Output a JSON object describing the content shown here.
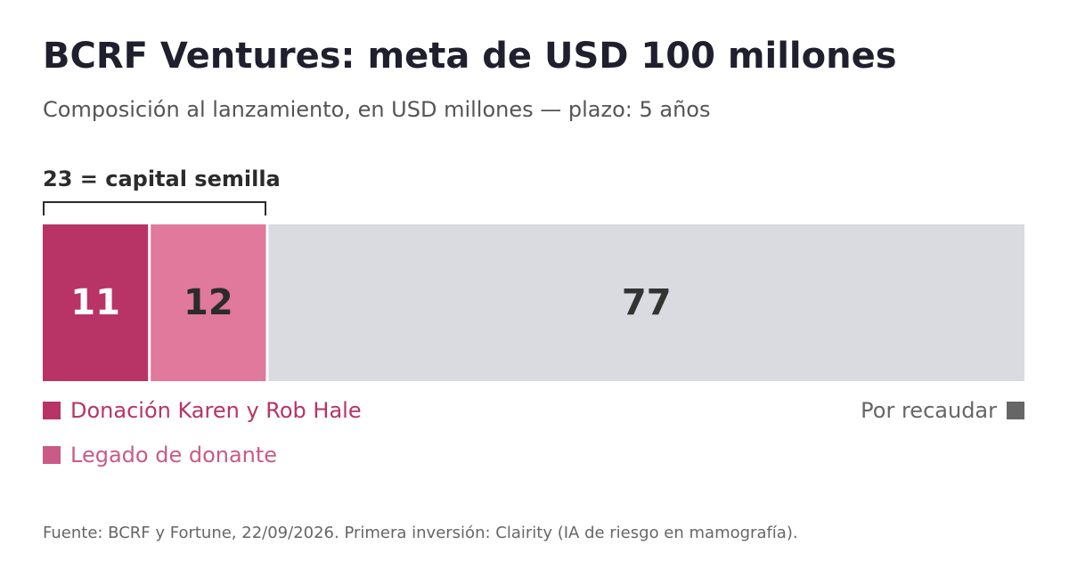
{
  "header": {
    "title": "BCRF Ventures: meta de USD 100 millones",
    "subtitle": "Composición al lanzamiento, en USD millones — plazo: 5 años"
  },
  "annotation": {
    "bracket_label": "23 = capital semilla"
  },
  "legend": {
    "karen": "Donación Karen y Rob Hale",
    "legado": "Legado de donante",
    "recaudar": "Por recaudar"
  },
  "footer": {
    "source": "Fuente: BCRF y Fortune, 22/09/2026. Primera inversión: Clairity (IA de riesgo en mamografía)."
  },
  "chart_data": {
    "type": "bar",
    "orientation": "horizontal-stacked",
    "title": "BCRF Ventures: meta de USD 100 millones",
    "subtitle": "Composición al lanzamiento, en USD millones — plazo: 5 años",
    "total": 100,
    "series": [
      {
        "name": "Donación Karen y Rob Hale",
        "value": 11,
        "label": "11",
        "color": "#b83366",
        "label_color": "#ffffff"
      },
      {
        "name": "Legado de donante",
        "value": 12,
        "label": "12",
        "color": "#e0799c",
        "label_color": "#2b2b2b"
      },
      {
        "name": "Por recaudar",
        "value": 77,
        "label": "77",
        "color": "#dadbe0",
        "label_color": "#333333"
      }
    ],
    "legend_colors": {
      "karen": "#b83366",
      "legado": "#c95b86",
      "recaudar": "#666666"
    },
    "grid": false
  }
}
